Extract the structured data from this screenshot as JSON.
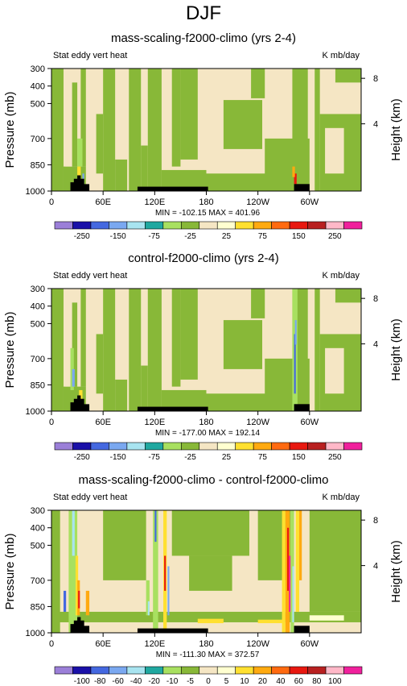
{
  "figure": {
    "title": "DJF"
  },
  "palette": {
    "levels": [
      "#9B7FD8",
      "#1A10A8",
      "#4468E0",
      "#7AA8F0",
      "#A8E4F0",
      "#20A8A0",
      "#A8E060",
      "#88B838",
      "#F5E6C4",
      "#FFFFD0",
      "#FFE030",
      "#FFAA10",
      "#FF6A10",
      "#E81810",
      "#B82020",
      "#FFB8C8",
      "#F0209C"
    ],
    "black": "#000000"
  },
  "axes": {
    "x_ticks": [
      "0",
      "60E",
      "120E",
      "180",
      "120W",
      "60W"
    ],
    "y_ticks": [
      "300",
      "400",
      "500",
      "700",
      "850",
      "1000"
    ],
    "y_right_ticks": [
      "8",
      "4"
    ],
    "ylabel": "Pressure (mb)",
    "ylabel_right": "Height (km)"
  },
  "chart_data": [
    {
      "type": "heatmap",
      "title": "mass-scaling-f2000-climo (yrs 2-4)",
      "left_label": "Stat eddy vert heat",
      "units": "K mb/day",
      "minmax": "MIN = -102.15   MAX = 401.96",
      "colorbar_labels": [
        "-250",
        "-150",
        "-75",
        "-25",
        "25",
        "75",
        "150",
        "250"
      ],
      "x_domain": [
        0,
        360
      ],
      "y_domain_mb": [
        300,
        1000
      ]
    },
    {
      "type": "heatmap",
      "title": "control-f2000-climo (yrs 2-4)",
      "left_label": "Stat eddy vert heat",
      "units": "K mb/day",
      "minmax": "MIN = -177.00   MAX = 192.14",
      "colorbar_labels": [
        "-250",
        "-150",
        "-75",
        "-25",
        "25",
        "75",
        "150",
        "250"
      ],
      "x_domain": [
        0,
        360
      ],
      "y_domain_mb": [
        300,
        1000
      ]
    },
    {
      "type": "heatmap",
      "title": "mass-scaling-f2000-climo - control-f2000-climo",
      "left_label": "Stat eddy vert heat",
      "units": "K mb/day",
      "minmax": "MIN = -111.30   MAX = 372.57",
      "colorbar_labels": [
        "-100",
        "-80",
        "-60",
        "-40",
        "-20",
        "-10",
        "-5",
        "0",
        "5",
        "10",
        "20",
        "40",
        "60",
        "80",
        "100"
      ],
      "x_domain": [
        0,
        360
      ],
      "y_domain_mb": [
        300,
        1000
      ]
    }
  ]
}
